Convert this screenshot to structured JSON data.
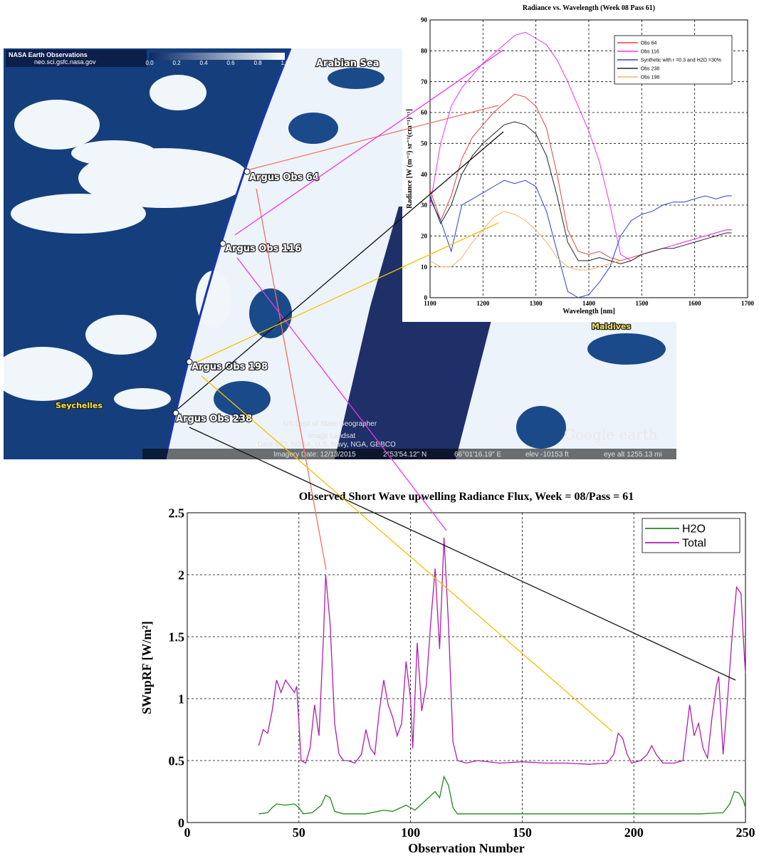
{
  "map": {
    "header_title": "NASA Earth Observations",
    "header_url": "neo.sci.gsfc.nasa.gov",
    "colorbar_labels": [
      "0.0",
      "0.2",
      "0.4",
      "0.6",
      "0.8",
      "1.0"
    ],
    "places": [
      "Arabian Sea",
      "Maldives",
      "Seychelles"
    ],
    "markers": [
      "Argus Obs 64",
      "Argus Obs 116",
      "Argus Obs 198",
      "Argus Obs 238"
    ],
    "credits": [
      "US Dept of State Geographer",
      "Image Landsat",
      "Data SIO, NOAA, U.S. Navy, NGA, GEBCO"
    ],
    "status": [
      "Imagery Date: 12/13/2015",
      "2°53'54.12\" N",
      "66°01'16.19\" E",
      "elev -10153 ft",
      "eye alt 1255.13 mi"
    ],
    "logo": "Google earth"
  },
  "chart_data": [
    {
      "type": "line",
      "title": "Radiance vs. Wavelength (Week 08 Pass 61)",
      "x_label": "Wavelength [nm]",
      "y_label": "Radiance [W (m⁻²) sr⁻¹(cm⁻¹)⁻¹]",
      "x": [
        1100,
        1120,
        1140,
        1160,
        1180,
        1200,
        1220,
        1240,
        1260,
        1280,
        1300,
        1320,
        1340,
        1360,
        1380,
        1400,
        1420,
        1440,
        1460,
        1480,
        1500,
        1520,
        1540,
        1560,
        1580,
        1600,
        1620,
        1640,
        1660,
        1670
      ],
      "xlim": [
        1100,
        1700
      ],
      "xticks": [
        1100,
        1200,
        1300,
        1400,
        1500,
        1600,
        1700
      ],
      "ylim": [
        0,
        90
      ],
      "yticks": [
        0,
        10,
        20,
        30,
        40,
        50,
        60,
        70,
        80,
        90
      ],
      "grid": true,
      "legend": "upper right",
      "series": [
        {
          "name": "Obs 64",
          "color": "#e8413a",
          "values": [
            35,
            25,
            33,
            45,
            52,
            56,
            60,
            63,
            66,
            65,
            62,
            55,
            40,
            22,
            15,
            14,
            15,
            13,
            12,
            13,
            14,
            15,
            16,
            17,
            18,
            19,
            20,
            21,
            22,
            22
          ]
        },
        {
          "name": "Obs 116",
          "color": "#ee33ee",
          "values": [
            30,
            50,
            62,
            68,
            72,
            76,
            79,
            82,
            85,
            86,
            84,
            82,
            77,
            70,
            62,
            54,
            44,
            30,
            14,
            12,
            14,
            15,
            16,
            17,
            18,
            19,
            20,
            21,
            22,
            22
          ]
        },
        {
          "name": "Synthetic with r =0.3 and H2O =30%",
          "color": "#2a3fd6",
          "values": [
            32,
            25,
            15,
            30,
            32,
            34,
            36,
            38,
            37,
            38,
            36,
            28,
            15,
            2,
            0,
            1,
            5,
            10,
            20,
            25,
            27,
            28,
            30,
            31,
            31,
            32,
            33,
            32,
            33,
            33
          ]
        },
        {
          "name": "Obs 238",
          "color": "#222222",
          "values": [
            33,
            24,
            30,
            40,
            46,
            50,
            53,
            56,
            57,
            56,
            53,
            46,
            33,
            18,
            12,
            12,
            13,
            12,
            11,
            12,
            14,
            15,
            16,
            16,
            17,
            18,
            19,
            20,
            21,
            21
          ]
        },
        {
          "name": "Obs 198",
          "color": "#f5b46a",
          "values": [
            12,
            10,
            10,
            13,
            18,
            22,
            26,
            28,
            27,
            25,
            22,
            18,
            13,
            10,
            9,
            9,
            10,
            11,
            12,
            null,
            null,
            null,
            null,
            null,
            null,
            null,
            null,
            null,
            null,
            null
          ]
        }
      ]
    },
    {
      "type": "line",
      "title": "Observed Short Wave upwelling Radiance Flux, Week = 08/Pass = 61",
      "x_label": "Observation Number",
      "y_label": "SWupRF [W/m²]",
      "xlim": [
        0,
        250
      ],
      "xticks": [
        0,
        50,
        100,
        150,
        200,
        250
      ],
      "ylim": [
        0,
        2.5
      ],
      "yticks": [
        0,
        0.5,
        1,
        1.5,
        2,
        2.5
      ],
      "grid": true,
      "legend": "upper right",
      "series": [
        {
          "name": "H2O",
          "color": "#1e8a1e",
          "x": [
            32,
            36,
            38,
            40,
            44,
            48,
            50,
            52,
            56,
            58,
            60,
            62,
            64,
            66,
            70,
            80,
            88,
            92,
            98,
            102,
            108,
            111,
            113,
            115,
            117,
            119,
            121,
            150,
            190,
            230,
            240,
            243,
            245,
            247,
            249,
            250
          ],
          "values": [
            0.07,
            0.08,
            0.12,
            0.15,
            0.14,
            0.15,
            0.12,
            0.07,
            0.08,
            0.11,
            0.14,
            0.22,
            0.2,
            0.09,
            0.07,
            0.07,
            0.1,
            0.09,
            0.14,
            0.1,
            0.2,
            0.25,
            0.2,
            0.37,
            0.3,
            0.12,
            0.07,
            0.07,
            0.07,
            0.07,
            0.08,
            0.15,
            0.25,
            0.24,
            0.18,
            0.12
          ]
        },
        {
          "name": "Total",
          "color": "#b01cb0",
          "x": [
            32,
            34,
            36,
            38,
            40,
            42,
            44,
            46,
            48,
            49,
            51,
            53,
            55,
            57,
            59,
            61,
            62,
            64,
            66,
            68,
            70,
            72,
            75,
            78,
            80,
            82,
            84,
            86,
            88,
            90,
            92,
            94,
            96,
            98,
            100,
            101,
            103,
            105,
            107,
            109,
            111,
            113,
            115,
            117,
            119,
            121,
            125,
            130,
            140,
            150,
            160,
            170,
            180,
            188,
            191,
            193,
            195,
            197,
            199,
            203,
            206,
            208,
            210,
            213,
            218,
            222,
            225,
            227,
            229,
            231,
            233,
            235,
            237,
            238,
            240,
            242,
            244,
            246,
            248,
            249,
            250
          ],
          "values": [
            0.62,
            0.75,
            0.72,
            0.9,
            1.15,
            1.05,
            1.15,
            1.1,
            1.05,
            1.1,
            0.5,
            0.48,
            0.6,
            0.95,
            0.7,
            1.5,
            2.0,
            1.6,
            0.8,
            0.55,
            0.5,
            0.5,
            0.48,
            0.55,
            0.75,
            0.6,
            0.55,
            0.9,
            1.15,
            0.95,
            0.85,
            0.7,
            0.8,
            1.3,
            1.0,
            0.6,
            1.45,
            0.9,
            1.1,
            1.6,
            2.05,
            1.4,
            2.3,
            1.6,
            0.65,
            0.5,
            0.48,
            0.5,
            0.48,
            0.49,
            0.48,
            0.48,
            0.47,
            0.48,
            0.55,
            0.72,
            0.68,
            0.55,
            0.48,
            0.5,
            0.55,
            0.62,
            0.55,
            0.48,
            0.48,
            0.5,
            0.95,
            0.7,
            0.8,
            0.6,
            0.52,
            0.85,
            1.1,
            1.18,
            0.55,
            1.0,
            1.5,
            1.9,
            1.85,
            1.5,
            1.2
          ]
        }
      ]
    }
  ]
}
